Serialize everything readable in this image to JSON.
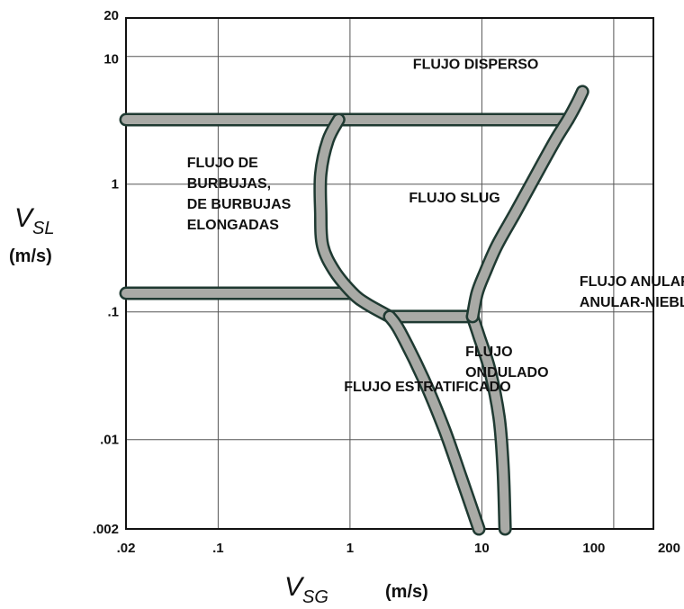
{
  "chart_data": {
    "type": "diagram",
    "x": {
      "label_symbol": "V",
      "label_subscript": "SG",
      "label_unit": "(m/s)",
      "scale": "log",
      "range": [
        0.02,
        200
      ],
      "ticks": [
        {
          "value": 0.02,
          "label": ".02"
        },
        {
          "value": 0.1,
          "label": ".1"
        },
        {
          "value": 1,
          "label": "1"
        },
        {
          "value": 10,
          "label": "10"
        },
        {
          "value": 100,
          "label": "100"
        },
        {
          "value": 200,
          "label": "200"
        }
      ]
    },
    "y": {
      "label_symbol": "V",
      "label_subscript": "SL",
      "label_unit": "(m/s)",
      "scale": "log",
      "range": [
        0.002,
        20
      ],
      "ticks": [
        {
          "value": 0.002,
          "label": ".002"
        },
        {
          "value": 0.01,
          "label": ".01"
        },
        {
          "value": 0.1,
          "label": ".1"
        },
        {
          "value": 1,
          "label": "1"
        },
        {
          "value": 10,
          "label": "10"
        },
        {
          "value": 20,
          "label": "20"
        }
      ]
    },
    "grid": true,
    "regions": [
      {
        "lines": [
          "FLUJO DISPERSO"
        ],
        "x": 3.0,
        "y": 8.0
      },
      {
        "lines": [
          "FLUJO DE",
          "BURBUJAS,",
          "DE BURBUJAS",
          "ELONGADAS"
        ],
        "x": 0.058,
        "y": 1.35
      },
      {
        "lines": [
          "FLUJO SLUG"
        ],
        "x": 2.8,
        "y": 0.72
      },
      {
        "lines": [
          "FLUJO ANULAR,",
          "ANULAR-NIEBLA"
        ],
        "x": 55,
        "y": 0.16
      },
      {
        "lines": [
          "FLUJO",
          "ONDULADO"
        ],
        "x": 7.5,
        "y": 0.045
      },
      {
        "lines": [
          "FLUJO ESTRATIFICADO"
        ],
        "x": 0.9,
        "y": 0.024
      }
    ],
    "boundaries": [
      {
        "name": "upper-horizontal",
        "points": [
          [
            0.02,
            3.2
          ],
          [
            45,
            3.2
          ]
        ]
      },
      {
        "name": "lower-horizontal",
        "points": [
          [
            0.02,
            0.14
          ],
          [
            1.05,
            0.14
          ]
        ]
      },
      {
        "name": "left-curve",
        "points": [
          [
            0.82,
            3.2
          ],
          [
            0.68,
            2.2
          ],
          [
            0.6,
            1.2
          ],
          [
            0.6,
            0.6
          ],
          [
            0.62,
            0.33
          ],
          [
            0.76,
            0.21
          ],
          [
            1.05,
            0.14
          ],
          [
            1.35,
            0.115
          ],
          [
            2.0,
            0.092
          ]
        ]
      },
      {
        "name": "middle-horizontal",
        "points": [
          [
            2.0,
            0.092
          ],
          [
            8.5,
            0.092
          ]
        ]
      },
      {
        "name": "stratified-wavy",
        "points": [
          [
            2.0,
            0.092
          ],
          [
            2.4,
            0.07
          ],
          [
            3.6,
            0.03
          ],
          [
            5.2,
            0.012
          ],
          [
            7.0,
            0.005
          ],
          [
            9.5,
            0.002
          ]
        ]
      },
      {
        "name": "wavy-annular",
        "points": [
          [
            8.5,
            0.092
          ],
          [
            9.5,
            0.065
          ],
          [
            11.5,
            0.035
          ],
          [
            13.5,
            0.015
          ],
          [
            14.5,
            0.006
          ],
          [
            15,
            0.002
          ]
        ]
      },
      {
        "name": "slug-annular",
        "points": [
          [
            8.5,
            0.092
          ],
          [
            9.2,
            0.14
          ],
          [
            10.5,
            0.2
          ],
          [
            13,
            0.33
          ],
          [
            18,
            0.6
          ],
          [
            26,
            1.2
          ],
          [
            36,
            2.2
          ],
          [
            45,
            3.2
          ],
          [
            52,
            4.2
          ],
          [
            58,
            5.3
          ]
        ]
      }
    ]
  }
}
